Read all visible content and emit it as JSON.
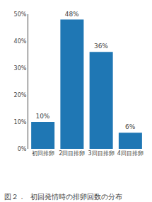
{
  "chart_data": {
    "type": "bar",
    "categories": [
      "初回排卵",
      "2回目排卵",
      "3回目排卵",
      "4回目排卵"
    ],
    "values": [
      10,
      48,
      36,
      6
    ],
    "value_labels": [
      "10%",
      "48%",
      "36%",
      "6%"
    ],
    "data_labels": true,
    "ylim": [
      0,
      50
    ],
    "yticks": [
      {
        "value": 0,
        "label": "0%"
      },
      {
        "value": 10,
        "label": "10%"
      },
      {
        "value": 20,
        "label": "20%"
      },
      {
        "value": 30,
        "label": "30%"
      },
      {
        "value": 40,
        "label": "40%"
      },
      {
        "value": 50,
        "label": "50%"
      }
    ],
    "grid": false,
    "annotations": [
      "図２．",
      "初回発情時の排卵回数の分布"
    ]
  }
}
